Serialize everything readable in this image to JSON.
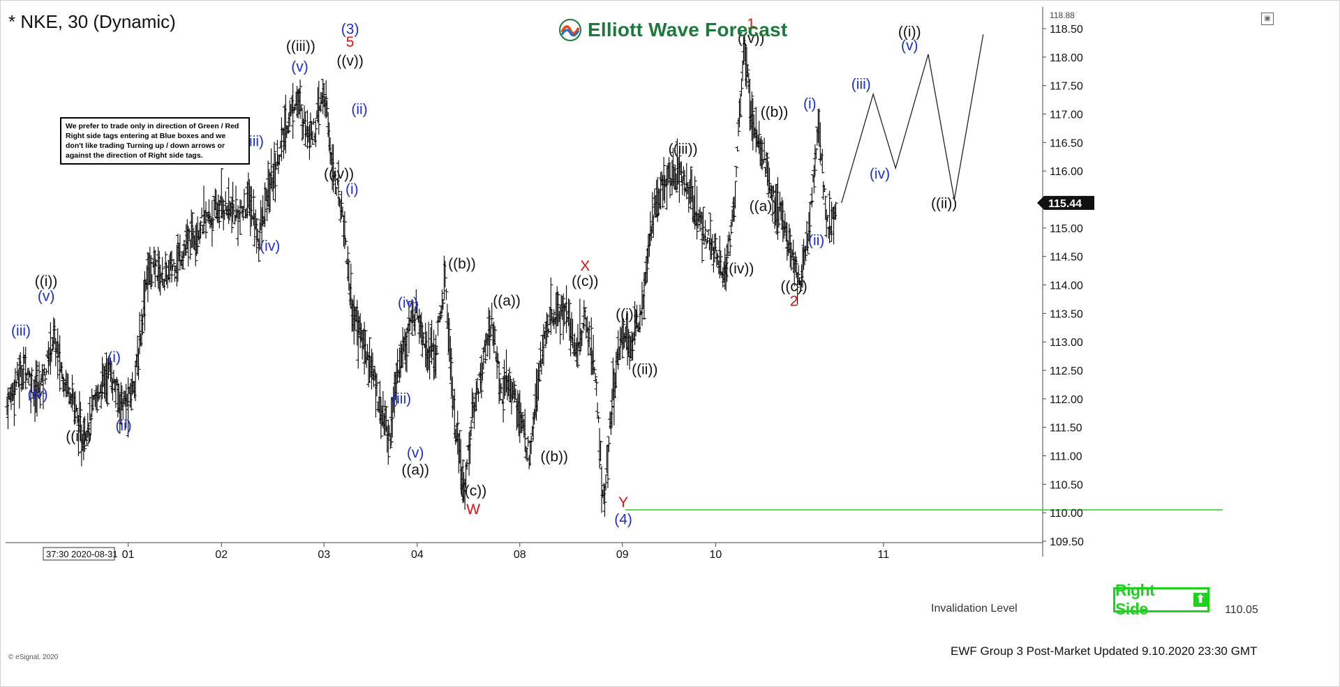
{
  "header": {
    "title": "* NKE, 30 (Dynamic)",
    "logo_text": "Elliott Wave Forecast"
  },
  "note_box": {
    "text": "We prefer to trade only in direction of Green / Red Right side tags entering at Blue boxes and we don't like trading Turning up / down arrows or against the direction of Right side tags."
  },
  "right_side_tag": {
    "label": "Right Side",
    "arrow": "up-arrow-icon"
  },
  "invalidation": {
    "label": "Invalidation Level",
    "value": "110.05"
  },
  "footer": {
    "text": "EWF Group 3 Post-Market Updated 9.10.2020 23:30 GMT",
    "esignal": "© eSignal, 2020"
  },
  "colors": {
    "bar": "#000000",
    "blue_label": "#1a2fd6",
    "red_label": "#e01010",
    "black_label": "#111111",
    "invalidation_line": "#35d335",
    "right_side": "#1fd11f",
    "price_tag_bg": "#111111",
    "logo": "#1a7a3a"
  },
  "chart_data": {
    "type": "ohlc",
    "symbol": "NKE",
    "timeframe": "30",
    "ylim": [
      109.5,
      118.88
    ],
    "y_ticks": [
      "118.50",
      "118.00",
      "117.50",
      "117.00",
      "116.50",
      "116.00",
      "115.50",
      "115.00",
      "114.50",
      "114.00",
      "113.50",
      "113.00",
      "112.50",
      "112.00",
      "111.50",
      "111.00",
      "110.50",
      "110.00",
      "109.50"
    ],
    "y_top_label": "118.88",
    "current_price": "115.44",
    "x_labels": [
      {
        "label": "01",
        "bar": 13
      },
      {
        "label": "02",
        "bar": 23
      },
      {
        "label": "03",
        "bar": 34
      },
      {
        "label": "04",
        "bar": 44
      },
      {
        "label": "08",
        "bar": 55
      },
      {
        "label": "09",
        "bar": 66
      },
      {
        "label": "10",
        "bar": 76
      },
      {
        "label": "11",
        "bar": 94
      }
    ],
    "x_cursor_label": "37:30 2020-08-31",
    "path_points": [
      [
        0,
        111.9
      ],
      [
        1,
        112.3
      ],
      [
        2,
        112.6
      ],
      [
        3,
        112.1
      ],
      [
        4,
        112.4
      ],
      [
        5,
        113.1
      ],
      [
        6,
        112.4
      ],
      [
        7,
        112.1
      ],
      [
        8,
        111.3
      ],
      [
        9,
        111.7
      ],
      [
        10,
        112.2
      ],
      [
        11,
        112.5
      ],
      [
        12,
        112.0
      ],
      [
        13,
        111.9
      ],
      [
        14,
        112.6
      ],
      [
        15,
        114.2
      ],
      [
        16,
        114.3
      ],
      [
        17,
        114.1
      ],
      [
        18,
        114.4
      ],
      [
        19,
        114.6
      ],
      [
        20,
        114.9
      ],
      [
        21,
        115.1
      ],
      [
        22,
        115.2
      ],
      [
        23,
        115.4
      ],
      [
        24,
        115.3
      ],
      [
        25,
        115.2
      ],
      [
        26,
        115.5
      ],
      [
        27,
        114.8
      ],
      [
        28,
        115.6
      ],
      [
        29,
        116.2
      ],
      [
        30,
        116.8
      ],
      [
        31,
        117.3
      ],
      [
        32,
        116.8
      ],
      [
        33,
        116.7
      ],
      [
        34,
        117.4
      ],
      [
        35,
        116.0
      ],
      [
        36,
        115.3
      ],
      [
        37,
        113.6
      ],
      [
        38,
        113.1
      ],
      [
        39,
        112.6
      ],
      [
        40,
        111.9
      ],
      [
        41,
        111.3
      ],
      [
        42,
        112.6
      ],
      [
        43,
        113.2
      ],
      [
        44,
        113.6
      ],
      [
        45,
        112.9
      ],
      [
        46,
        112.8
      ],
      [
        47,
        114.1
      ],
      [
        48,
        111.6
      ],
      [
        49,
        110.4
      ],
      [
        50,
        111.8
      ],
      [
        51,
        112.6
      ],
      [
        52,
        113.4
      ],
      [
        53,
        112.1
      ],
      [
        54,
        112.3
      ],
      [
        55,
        111.7
      ],
      [
        56,
        111.0
      ],
      [
        57,
        112.5
      ],
      [
        58,
        113.3
      ],
      [
        59,
        113.5
      ],
      [
        60,
        113.6
      ],
      [
        61,
        112.8
      ],
      [
        62,
        113.4
      ],
      [
        63,
        112.6
      ],
      [
        64,
        110.1
      ],
      [
        65,
        112.1
      ],
      [
        66,
        113.2
      ],
      [
        67,
        112.9
      ],
      [
        68,
        113.6
      ],
      [
        69,
        115.0
      ],
      [
        70,
        115.6
      ],
      [
        71,
        115.9
      ],
      [
        72,
        116.0
      ],
      [
        73,
        115.7
      ],
      [
        74,
        115.3
      ],
      [
        75,
        114.8
      ],
      [
        76,
        114.6
      ],
      [
        77,
        114.2
      ],
      [
        78,
        115.4
      ],
      [
        79,
        118.2
      ],
      [
        80,
        116.9
      ],
      [
        81,
        116.4
      ],
      [
        82,
        115.6
      ],
      [
        83,
        115.2
      ],
      [
        84,
        114.6
      ],
      [
        85,
        114.0
      ],
      [
        86,
        115.0
      ],
      [
        87,
        116.8
      ],
      [
        88,
        115.0
      ],
      [
        89,
        115.44
      ]
    ],
    "projection": [
      [
        89.5,
        115.44
      ],
      [
        92.9,
        117.35
      ],
      [
        95.3,
        116.05
      ],
      [
        98.8,
        118.05
      ],
      [
        101.6,
        115.5
      ],
      [
        104.7,
        118.4
      ]
    ],
    "invalidation_level": 110.05,
    "labels": [
      {
        "text": "(iii)",
        "x": 1.5,
        "y": 113.11,
        "color": "blue"
      },
      {
        "text": "(iv)",
        "x": 3.3,
        "y": 112.0,
        "color": "blue"
      },
      {
        "text": "((i))",
        "x": 4.2,
        "y": 113.98,
        "color": "black"
      },
      {
        "text": "(v)",
        "x": 4.2,
        "y": 113.72,
        "color": "blue"
      },
      {
        "text": "((ii))",
        "x": 7.7,
        "y": 111.26,
        "color": "black"
      },
      {
        "text": "(i)",
        "x": 11.5,
        "y": 112.65,
        "color": "blue"
      },
      {
        "text": "(ii)",
        "x": 12.5,
        "y": 111.45,
        "color": "blue"
      },
      {
        "text": "(iii)",
        "x": 26.5,
        "y": 116.44,
        "color": "blue"
      },
      {
        "text": "(iv)",
        "x": 28.2,
        "y": 114.6,
        "color": "blue"
      },
      {
        "text": "((iii))",
        "x": 31.5,
        "y": 118.11,
        "color": "black"
      },
      {
        "text": "(v)",
        "x": 31.4,
        "y": 117.75,
        "color": "blue"
      },
      {
        "text": "(3)",
        "x": 36.8,
        "y": 118.41,
        "color": "blue"
      },
      {
        "text": "5",
        "x": 36.8,
        "y": 118.18,
        "color": "red"
      },
      {
        "text": "((v))",
        "x": 36.8,
        "y": 117.85,
        "color": "black"
      },
      {
        "text": "(ii)",
        "x": 37.8,
        "y": 117.0,
        "color": "blue"
      },
      {
        "text": "((iv))",
        "x": 35.6,
        "y": 115.87,
        "color": "black"
      },
      {
        "text": "(i)",
        "x": 37.0,
        "y": 115.6,
        "color": "blue"
      },
      {
        "text": "(iv)",
        "x": 43.0,
        "y": 113.6,
        "color": "blue"
      },
      {
        "text": "(iii)",
        "x": 42.3,
        "y": 111.92,
        "color": "blue"
      },
      {
        "text": "(v)",
        "x": 43.8,
        "y": 110.97,
        "color": "blue"
      },
      {
        "text": "((a))",
        "x": 43.8,
        "y": 110.67,
        "color": "black"
      },
      {
        "text": "((b))",
        "x": 48.8,
        "y": 114.29,
        "color": "black"
      },
      {
        "text": "((c))",
        "x": 50.0,
        "y": 110.3,
        "color": "black"
      },
      {
        "text": "W",
        "x": 50.0,
        "y": 109.98,
        "color": "red"
      },
      {
        "text": "((a))",
        "x": 53.6,
        "y": 113.64,
        "color": "black"
      },
      {
        "text": "((b))",
        "x": 58.7,
        "y": 110.9,
        "color": "black"
      },
      {
        "text": "X",
        "x": 62.0,
        "y": 114.25,
        "color": "red"
      },
      {
        "text": "((c))",
        "x": 62.0,
        "y": 113.98,
        "color": "black"
      },
      {
        "text": "((i))",
        "x": 66.5,
        "y": 113.4,
        "color": "black"
      },
      {
        "text": "((ii))",
        "x": 68.4,
        "y": 112.43,
        "color": "black"
      },
      {
        "text": "Y",
        "x": 66.1,
        "y": 110.1,
        "color": "red"
      },
      {
        "text": "(4)",
        "x": 66.1,
        "y": 109.8,
        "color": "blue"
      },
      {
        "text": "((iii))",
        "x": 72.5,
        "y": 116.3,
        "color": "black"
      },
      {
        "text": "((iv))",
        "x": 78.5,
        "y": 114.2,
        "color": "black"
      },
      {
        "text": "1",
        "x": 79.8,
        "y": 118.5,
        "color": "red"
      },
      {
        "text": "((v))",
        "x": 79.8,
        "y": 118.25,
        "color": "black"
      },
      {
        "text": "((b))",
        "x": 82.3,
        "y": 116.95,
        "color": "black"
      },
      {
        "text": "((a))",
        "x": 81.1,
        "y": 115.3,
        "color": "black"
      },
      {
        "text": "(i)",
        "x": 86.1,
        "y": 117.1,
        "color": "blue"
      },
      {
        "text": "(ii)",
        "x": 86.8,
        "y": 114.7,
        "color": "blue"
      },
      {
        "text": "((c))",
        "x": 84.4,
        "y": 113.89,
        "color": "black"
      },
      {
        "text": "2",
        "x": 84.4,
        "y": 113.63,
        "color": "red"
      },
      {
        "text": "(iii)",
        "x": 91.6,
        "y": 117.44,
        "color": "blue"
      },
      {
        "text": "(iv)",
        "x": 93.6,
        "y": 115.87,
        "color": "blue"
      },
      {
        "text": "((i))",
        "x": 96.8,
        "y": 118.36,
        "color": "black"
      },
      {
        "text": "(v)",
        "x": 96.8,
        "y": 118.12,
        "color": "blue"
      },
      {
        "text": "((ii))",
        "x": 100.5,
        "y": 115.35,
        "color": "black"
      }
    ]
  }
}
